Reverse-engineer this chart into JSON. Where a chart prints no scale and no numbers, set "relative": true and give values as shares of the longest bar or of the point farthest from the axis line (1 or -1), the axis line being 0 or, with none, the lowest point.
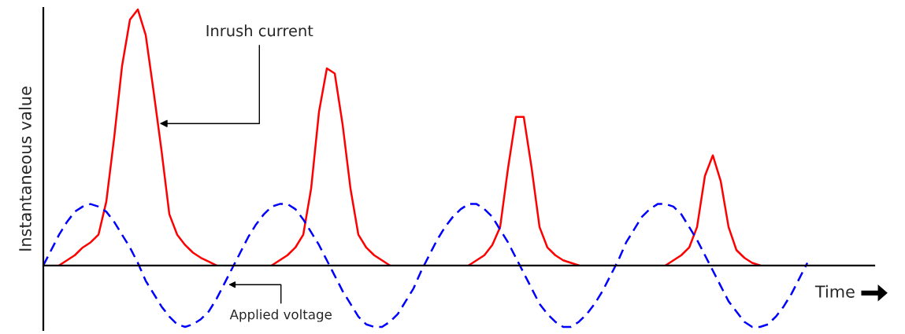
{
  "chart_data": {
    "type": "line",
    "relative": true,
    "xlabel": "Time",
    "ylabel": "Instantaneous value",
    "categories": [
      null,
      null,
      null,
      null,
      null,
      null,
      null,
      null,
      null,
      null,
      null,
      null,
      null,
      null,
      null,
      null,
      null,
      null,
      null,
      null,
      null,
      null,
      null,
      null,
      null,
      null,
      null,
      null,
      null,
      null,
      null,
      null,
      null,
      null,
      null,
      null,
      null,
      null,
      null,
      null,
      null,
      null,
      null,
      null,
      null,
      null,
      null,
      null,
      null,
      null,
      null,
      null,
      null,
      null,
      null,
      null,
      null,
      null,
      null,
      null,
      null,
      null,
      null,
      null,
      null,
      null,
      null,
      null,
      null,
      null,
      null,
      null,
      null,
      null,
      null,
      null,
      null,
      null,
      null,
      null,
      null,
      null,
      null,
      null,
      null,
      null,
      null,
      null,
      null,
      null,
      null,
      null,
      null,
      null,
      null,
      null,
      null,
      null,
      null,
      null,
      null,
      null,
      null,
      null,
      null,
      null
    ],
    "series": [
      {
        "color": "#ff0000",
        "line_style": "solid",
        "values": [
          null,
          null,
          0,
          0.02,
          0.04,
          0.07,
          0.09,
          0.12,
          0.25,
          0.5,
          0.78,
          0.96,
          1,
          0.9,
          0.68,
          0.45,
          0.2,
          0.12,
          0.08,
          0.05,
          0.03,
          0.015,
          0,
          null,
          null,
          null,
          null,
          null,
          null,
          0,
          0.02,
          0.04,
          0.07,
          0.12,
          0.3,
          0.6,
          0.77,
          0.75,
          0.55,
          0.3,
          0.12,
          0.07,
          0.04,
          0.02,
          0,
          null,
          null,
          null,
          null,
          null,
          null,
          null,
          null,
          null,
          0,
          0.02,
          0.04,
          0.08,
          0.15,
          0.38,
          0.58,
          0.58,
          0.38,
          0.15,
          0.07,
          0.04,
          0.02,
          0.01,
          0,
          null,
          null,
          null,
          null,
          null,
          null,
          null,
          null,
          null,
          null,
          0,
          0.02,
          0.04,
          0.07,
          0.15,
          0.35,
          0.43,
          0.33,
          0.15,
          0.06,
          0.03,
          0.01,
          0,
          null,
          null,
          null,
          null,
          null,
          null,
          null,
          null,
          null,
          null,
          null,
          null,
          null,
          null
        ]
      },
      {
        "color": "#0000ff",
        "line_style": "dashed",
        "values": [
          0,
          0.06,
          0.12,
          0.17,
          0.21,
          0.23,
          0.24,
          0.23,
          0.21,
          0.17,
          0.12,
          0.07,
          0.01,
          -0.06,
          -0.11,
          -0.16,
          -0.2,
          -0.23,
          -0.24,
          -0.23,
          -0.21,
          -0.18,
          -0.13,
          -0.07,
          -0.01,
          0.05,
          0.11,
          0.16,
          0.2,
          0.23,
          0.24,
          0.24,
          0.22,
          0.18,
          0.13,
          0.08,
          0.02,
          -0.04,
          -0.1,
          -0.15,
          -0.2,
          -0.23,
          -0.24,
          -0.24,
          -0.22,
          -0.19,
          -0.14,
          -0.09,
          -0.02,
          0.04,
          0.1,
          0.15,
          0.19,
          0.22,
          0.24,
          0.24,
          0.22,
          0.19,
          0.14,
          0.09,
          0.03,
          -0.03,
          -0.09,
          -0.15,
          -0.19,
          -0.22,
          -0.24,
          -0.24,
          -0.22,
          -0.19,
          -0.15,
          -0.1,
          -0.04,
          0.02,
          0.09,
          0.14,
          0.19,
          0.22,
          0.24,
          0.24,
          0.23,
          0.2,
          0.15,
          0.1,
          0.04,
          -0.02,
          -0.08,
          -0.14,
          -0.18,
          -0.22,
          -0.24,
          -0.24,
          -0.23,
          -0.2,
          -0.16,
          -0.11,
          -0.05,
          0.01,
          null,
          null,
          null,
          null,
          null,
          null,
          null,
          null
        ]
      }
    ],
    "annotations": [
      "Inrush current",
      "Applied voltage"
    ],
    "legend": false,
    "grid": false
  }
}
